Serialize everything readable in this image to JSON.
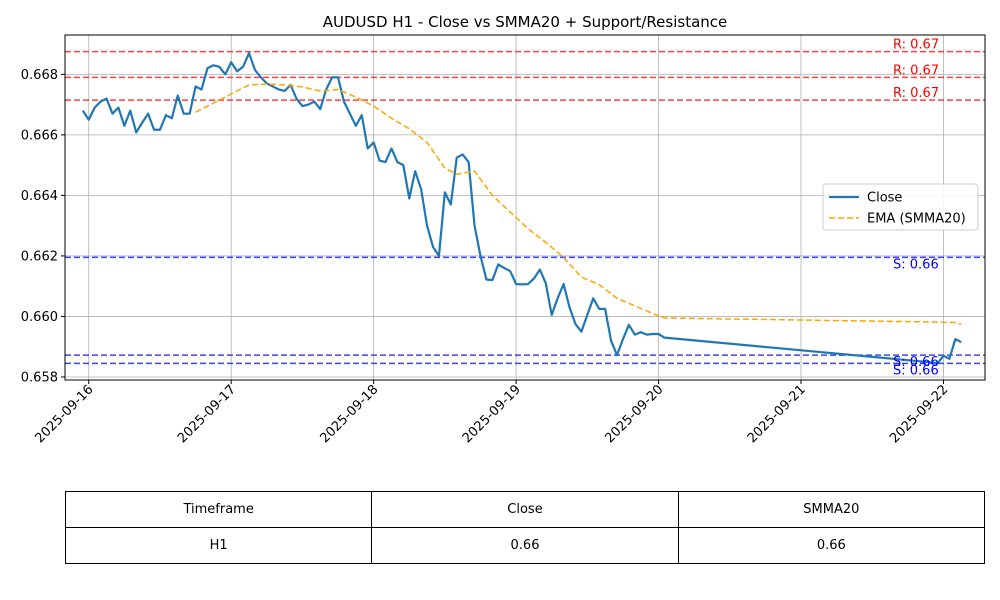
{
  "chart_data": {
    "type": "line",
    "title": "AUDUSD H1 - Close vs SMMA20 + Support/Resistance",
    "xlabel": "",
    "ylabel": "",
    "x_range": [
      "2025-09-15T20:00",
      "2025-09-22T07:00"
    ],
    "y_range": [
      0.6579,
      0.6693
    ],
    "x_ticks": [
      "2025-09-16",
      "2025-09-17",
      "2025-09-18",
      "2025-09-19",
      "2025-09-20",
      "2025-09-21",
      "2025-09-22"
    ],
    "y_ticks": [
      "0.658",
      "0.660",
      "0.662",
      "0.664",
      "0.666",
      "0.668"
    ],
    "grid": true,
    "legend_position": "center-right",
    "series": [
      {
        "name": "Close",
        "color": "#1f77b4",
        "style": "solid",
        "points": [
          [
            "2025-09-15T23:00",
            0.6668
          ],
          [
            "2025-09-16T00:00",
            0.6665
          ],
          [
            "2025-09-16T01:00",
            0.6669
          ],
          [
            "2025-09-16T02:00",
            0.6671
          ],
          [
            "2025-09-16T03:00",
            0.6672
          ],
          [
            "2025-09-16T04:00",
            0.6667
          ],
          [
            "2025-09-16T05:00",
            0.6669
          ],
          [
            "2025-09-16T06:00",
            0.6663
          ],
          [
            "2025-09-16T07:00",
            0.6668
          ],
          [
            "2025-09-16T08:00",
            0.66608
          ],
          [
            "2025-09-16T09:00",
            0.6664
          ],
          [
            "2025-09-16T10:00",
            0.6667
          ],
          [
            "2025-09-16T11:00",
            0.66617
          ],
          [
            "2025-09-16T12:00",
            0.66617
          ],
          [
            "2025-09-16T13:00",
            0.66665
          ],
          [
            "2025-09-16T14:00",
            0.66655
          ],
          [
            "2025-09-16T15:00",
            0.6673
          ],
          [
            "2025-09-16T16:00",
            0.6667
          ],
          [
            "2025-09-16T17:00",
            0.6667
          ],
          [
            "2025-09-16T18:00",
            0.6676
          ],
          [
            "2025-09-16T19:00",
            0.6675
          ],
          [
            "2025-09-16T20:00",
            0.6682
          ],
          [
            "2025-09-16T21:00",
            0.6683
          ],
          [
            "2025-09-16T22:00",
            0.66825
          ],
          [
            "2025-09-16T23:00",
            0.668
          ],
          [
            "2025-09-17T00:00",
            0.6684
          ],
          [
            "2025-09-17T01:00",
            0.6681
          ],
          [
            "2025-09-17T02:00",
            0.66825
          ],
          [
            "2025-09-17T03:00",
            0.6687
          ],
          [
            "2025-09-17T04:00",
            0.66815
          ],
          [
            "2025-09-17T05:00",
            0.6679
          ],
          [
            "2025-09-17T06:00",
            0.6677
          ],
          [
            "2025-09-17T07:00",
            0.6676
          ],
          [
            "2025-09-17T08:00",
            0.6675
          ],
          [
            "2025-09-17T09:00",
            0.66745
          ],
          [
            "2025-09-17T10:00",
            0.66765
          ],
          [
            "2025-09-17T11:00",
            0.6672
          ],
          [
            "2025-09-17T12:00",
            0.66695
          ],
          [
            "2025-09-17T13:00",
            0.667
          ],
          [
            "2025-09-17T14:00",
            0.6671
          ],
          [
            "2025-09-17T15:00",
            0.66685
          ],
          [
            "2025-09-17T16:00",
            0.6675
          ],
          [
            "2025-09-17T17:00",
            0.6679
          ],
          [
            "2025-09-17T18:00",
            0.6679
          ],
          [
            "2025-09-17T19:00",
            0.6671
          ],
          [
            "2025-09-17T20:00",
            0.6667
          ],
          [
            "2025-09-17T21:00",
            0.6663
          ],
          [
            "2025-09-17T22:00",
            0.66665
          ],
          [
            "2025-09-17T23:00",
            0.66555
          ],
          [
            "2025-09-18T00:00",
            0.66575
          ],
          [
            "2025-09-18T01:00",
            0.66515
          ],
          [
            "2025-09-18T02:00",
            0.6651
          ],
          [
            "2025-09-18T03:00",
            0.66555
          ],
          [
            "2025-09-18T04:00",
            0.6651
          ],
          [
            "2025-09-18T05:00",
            0.665
          ],
          [
            "2025-09-18T06:00",
            0.6639
          ],
          [
            "2025-09-18T07:00",
            0.6648
          ],
          [
            "2025-09-18T08:00",
            0.6642
          ],
          [
            "2025-09-18T09:00",
            0.663
          ],
          [
            "2025-09-18T10:00",
            0.6623
          ],
          [
            "2025-09-18T11:00",
            0.662
          ],
          [
            "2025-09-18T12:00",
            0.6641
          ],
          [
            "2025-09-18T13:00",
            0.6637
          ],
          [
            "2025-09-18T14:00",
            0.66525
          ],
          [
            "2025-09-18T15:00",
            0.66535
          ],
          [
            "2025-09-18T16:00",
            0.6651
          ],
          [
            "2025-09-18T17:00",
            0.663
          ],
          [
            "2025-09-18T18:00",
            0.662
          ],
          [
            "2025-09-18T19:00",
            0.66122
          ],
          [
            "2025-09-18T20:00",
            0.6612
          ],
          [
            "2025-09-18T21:00",
            0.66172
          ],
          [
            "2025-09-18T22:00",
            0.6616
          ],
          [
            "2025-09-18T23:00",
            0.6615
          ],
          [
            "2025-09-19T00:00",
            0.66107
          ],
          [
            "2025-09-19T01:00",
            0.66106
          ],
          [
            "2025-09-19T02:00",
            0.66107
          ],
          [
            "2025-09-19T03:00",
            0.66125
          ],
          [
            "2025-09-19T04:00",
            0.66155
          ],
          [
            "2025-09-19T05:00",
            0.6611
          ],
          [
            "2025-09-19T06:00",
            0.66005
          ],
          [
            "2025-09-19T07:00",
            0.6606
          ],
          [
            "2025-09-19T08:00",
            0.66107
          ],
          [
            "2025-09-19T09:00",
            0.6603
          ],
          [
            "2025-09-19T10:00",
            0.65975
          ],
          [
            "2025-09-19T11:00",
            0.6595
          ],
          [
            "2025-09-19T12:00",
            0.66005
          ],
          [
            "2025-09-19T13:00",
            0.6606
          ],
          [
            "2025-09-19T14:00",
            0.66025
          ],
          [
            "2025-09-19T15:00",
            0.66025
          ],
          [
            "2025-09-19T16:00",
            0.6592
          ],
          [
            "2025-09-19T17:00",
            0.65872
          ],
          [
            "2025-09-19T18:00",
            0.65925
          ],
          [
            "2025-09-19T19:00",
            0.65972
          ],
          [
            "2025-09-19T20:00",
            0.6594
          ],
          [
            "2025-09-19T21:00",
            0.65948
          ],
          [
            "2025-09-19T22:00",
            0.6594
          ],
          [
            "2025-09-19T23:00",
            0.65942
          ],
          [
            "2025-09-20T00:00",
            0.65942
          ],
          [
            "2025-09-20T01:00",
            0.6593
          ],
          [
            "2025-09-21T21:00",
            0.6585
          ],
          [
            "2025-09-21T22:00",
            0.65848
          ],
          [
            "2025-09-21T23:00",
            0.65845
          ],
          [
            "2025-09-22T00:00",
            0.6587
          ],
          [
            "2025-09-22T01:00",
            0.6586
          ],
          [
            "2025-09-22T02:00",
            0.65925
          ],
          [
            "2025-09-22T03:00",
            0.65915
          ]
        ]
      },
      {
        "name": "EMA (SMMA20)",
        "color": "#ffa500",
        "style": "dashed",
        "points": [
          [
            "2025-09-16T18:00",
            0.66675
          ],
          [
            "2025-09-16T21:00",
            0.66705
          ],
          [
            "2025-09-17T00:00",
            0.66735
          ],
          [
            "2025-09-17T03:00",
            0.66765
          ],
          [
            "2025-09-17T06:00",
            0.66768
          ],
          [
            "2025-09-17T09:00",
            0.66765
          ],
          [
            "2025-09-17T12:00",
            0.66758
          ],
          [
            "2025-09-17T15:00",
            0.66745
          ],
          [
            "2025-09-17T18:00",
            0.6675
          ],
          [
            "2025-09-17T21:00",
            0.66725
          ],
          [
            "2025-09-18T00:00",
            0.66695
          ],
          [
            "2025-09-18T03:00",
            0.66655
          ],
          [
            "2025-09-18T06:00",
            0.6662
          ],
          [
            "2025-09-18T09:00",
            0.66575
          ],
          [
            "2025-09-18T12:00",
            0.6649
          ],
          [
            "2025-09-18T14:00",
            0.6647
          ],
          [
            "2025-09-18T17:00",
            0.6648
          ],
          [
            "2025-09-18T20:00",
            0.664
          ],
          [
            "2025-09-18T23:00",
            0.66345
          ],
          [
            "2025-09-19T02:00",
            0.6629
          ],
          [
            "2025-09-19T05:00",
            0.66245
          ],
          [
            "2025-09-19T08:00",
            0.66195
          ],
          [
            "2025-09-19T11:00",
            0.6613
          ],
          [
            "2025-09-19T14:00",
            0.66105
          ],
          [
            "2025-09-19T17:00",
            0.6606
          ],
          [
            "2025-09-19T20:00",
            0.66035
          ],
          [
            "2025-09-19T23:00",
            0.6601
          ],
          [
            "2025-09-20T01:00",
            0.65995
          ],
          [
            "2025-09-21T21:00",
            0.65982
          ],
          [
            "2025-09-22T02:00",
            0.6598
          ],
          [
            "2025-09-22T03:00",
            0.65973
          ]
        ]
      }
    ],
    "horizontal_levels": [
      {
        "kind": "resistance",
        "value": 0.66875,
        "label": "R: 0.67",
        "color": "#ff0000"
      },
      {
        "kind": "resistance",
        "value": 0.6679,
        "label": "R: 0.67",
        "color": "#ff0000"
      },
      {
        "kind": "resistance",
        "value": 0.66715,
        "label": "R: 0.67",
        "color": "#ff0000"
      },
      {
        "kind": "support",
        "value": 0.66195,
        "label": "S: 0.66",
        "color": "#0000ff"
      },
      {
        "kind": "support",
        "value": 0.65872,
        "label": "S: 0.66",
        "color": "#0000ff"
      },
      {
        "kind": "support",
        "value": 0.65845,
        "label": "S: 0.66",
        "color": "#0000ff"
      }
    ]
  },
  "table": {
    "headers": [
      "Timeframe",
      "Close",
      "SMMA20"
    ],
    "rows": [
      [
        "H1",
        "0.66",
        "0.66"
      ]
    ]
  }
}
